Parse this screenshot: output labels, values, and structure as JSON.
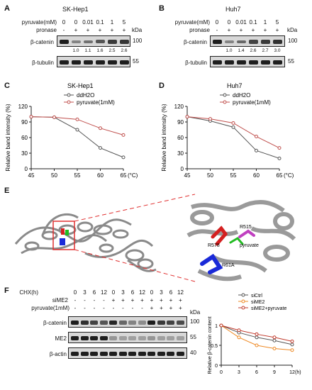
{
  "panels": {
    "A": {
      "label": "A",
      "title": "SK-Hep1",
      "rows": [
        "pyruvate(mM)",
        "pronase"
      ],
      "pyruvate": [
        "0",
        "0",
        "0.01",
        "0.1",
        "1",
        "5"
      ],
      "pronase": [
        "-",
        "+",
        "+",
        "+",
        "+",
        "+"
      ],
      "blots": [
        "β-catenin",
        "β-tubulin"
      ],
      "kda_title": "kDa",
      "markers": [
        "100",
        "55"
      ],
      "quant": [
        "1.0",
        "1.1",
        "1.6",
        "2.5",
        "2.6"
      ],
      "band_levels": [
        1.0,
        0.45,
        0.55,
        0.7,
        0.85,
        0.88
      ]
    },
    "B": {
      "label": "B",
      "title": "Huh7",
      "rows": [
        "pyruvate(mM)",
        "pronase"
      ],
      "pyruvate": [
        "0",
        "0",
        "0.01",
        "0.1",
        "1",
        "5"
      ],
      "pronase": [
        "-",
        "+",
        "+",
        "+",
        "+",
        "+"
      ],
      "blots": [
        "β-catenin",
        "β-tubulin"
      ],
      "kda_title": "kDa",
      "markers": [
        "100",
        "55"
      ],
      "quant": [
        "1.0",
        "1.4",
        "2.6",
        "2.7",
        "3.0"
      ],
      "band_levels": [
        1.0,
        0.45,
        0.6,
        0.8,
        0.85,
        0.9
      ]
    },
    "C": {
      "label": "C"
    },
    "D": {
      "label": "D"
    },
    "E": {
      "label": "E",
      "residues": [
        "R515",
        "R578",
        "pyruvate",
        "R61A"
      ],
      "colors": {
        "R515": "#c040c0",
        "R578": "#d42020",
        "pyruvate": "#22bb22",
        "R61A": "#1a2ad8"
      }
    },
    "F": {
      "label": "F",
      "rows": [
        "CHX(h)",
        "siME2",
        "pyruvate(1mM)"
      ],
      "chx": [
        "0",
        "3",
        "6",
        "12",
        "0",
        "3",
        "6",
        "12",
        "0",
        "3",
        "6",
        "12"
      ],
      "sime2": [
        "-",
        "-",
        "-",
        "-",
        "+",
        "+",
        "+",
        "+",
        "+",
        "+",
        "+",
        "+"
      ],
      "pyr": [
        "-",
        "-",
        "-",
        "-",
        "-",
        "-",
        "-",
        "-",
        "+",
        "+",
        "+",
        "+"
      ],
      "blots": [
        "β-catenin",
        "ME2",
        "β-actin"
      ],
      "kda_title": "kDa",
      "markers": [
        "100",
        "55",
        "40"
      ]
    }
  },
  "chart_data": [
    {
      "type": "line",
      "title": "SK-Hep1",
      "x": [
        45,
        50,
        55,
        60,
        65
      ],
      "xlabel": "(°C)",
      "ylabel": "Relative band intensity (%)",
      "ylim": [
        0,
        120
      ],
      "yticks": [
        0,
        30,
        60,
        90,
        120
      ],
      "series": [
        {
          "name": "ddH2O",
          "color": "#555555",
          "values": [
            100,
            99,
            75,
            40,
            22
          ]
        },
        {
          "name": "pyruvate(1mM)",
          "color": "#c0504d",
          "values": [
            100,
            99,
            95,
            78,
            65
          ]
        }
      ]
    },
    {
      "type": "line",
      "title": "Huh7",
      "x": [
        45,
        50,
        55,
        60,
        65
      ],
      "xlabel": "(°C)",
      "ylabel": "Relative band intensity (%)",
      "ylim": [
        0,
        120
      ],
      "yticks": [
        0,
        30,
        60,
        90,
        120
      ],
      "series": [
        {
          "name": "ddH2O",
          "color": "#555555",
          "values": [
            100,
            92,
            80,
            35,
            20
          ]
        },
        {
          "name": "pyruvate(1mM)",
          "color": "#c0504d",
          "values": [
            100,
            96,
            88,
            62,
            40
          ]
        }
      ]
    },
    {
      "type": "line",
      "x": [
        0,
        3,
        6,
        9,
        12
      ],
      "xlabel": "(h)",
      "ylabel": "Relative β-catenin content",
      "ylim": [
        0,
        1.0
      ],
      "yticks": [
        0,
        0.5,
        1.0
      ],
      "series": [
        {
          "name": "siCtrl",
          "color": "#555555",
          "values": [
            1.0,
            0.82,
            0.7,
            0.62,
            0.52
          ]
        },
        {
          "name": "siME2",
          "color": "#ee8822",
          "values": [
            1.0,
            0.7,
            0.5,
            0.42,
            0.38
          ]
        },
        {
          "name": "siME2+pyruvate",
          "color": "#c0392b",
          "values": [
            1.0,
            0.88,
            0.78,
            0.7,
            0.6
          ]
        }
      ]
    }
  ]
}
